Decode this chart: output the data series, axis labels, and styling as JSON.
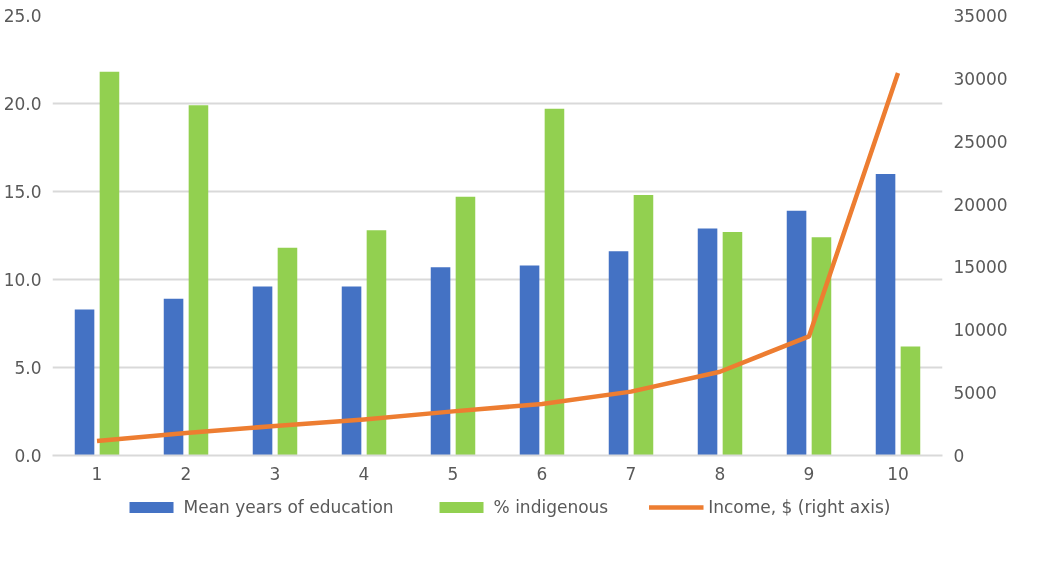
{
  "chart_data": {
    "type": "bar",
    "categories": [
      "1",
      "2",
      "3",
      "4",
      "5",
      "6",
      "7",
      "8",
      "9",
      "10"
    ],
    "series": [
      {
        "name": "Mean years of education",
        "color": "#4472c4",
        "values": [
          8.3,
          8.9,
          9.6,
          9.6,
          10.7,
          10.8,
          11.6,
          12.9,
          13.9,
          16.0
        ]
      },
      {
        "name": "% indigenous",
        "color": "#92d050",
        "values": [
          21.8,
          19.9,
          11.8,
          12.8,
          14.7,
          19.7,
          14.8,
          12.7,
          12.4,
          6.2
        ]
      },
      {
        "name": "Income, $ (right axis)",
        "type": "line",
        "axis": "y2",
        "color": "#ed7d31",
        "values": [
          1150,
          1790,
          2350,
          2870,
          3510,
          4100,
          5080,
          6660,
          9480,
          30430
        ]
      }
    ],
    "ylim": [
      0,
      25
    ],
    "yticks": [
      {
        "value": 0,
        "label": "0.0"
      },
      {
        "value": 5,
        "label": "5.0"
      },
      {
        "value": 10,
        "label": "10.0"
      },
      {
        "value": 15,
        "label": "15.0"
      },
      {
        "value": 20,
        "label": "20.0"
      },
      {
        "value": 25,
        "label": "25.0"
      }
    ],
    "y2lim": [
      0,
      35000
    ],
    "y2ticks": [
      0,
      5000,
      10000,
      15000,
      20000,
      25000,
      30000,
      35000
    ],
    "grid": "y",
    "legend": "bottom"
  }
}
